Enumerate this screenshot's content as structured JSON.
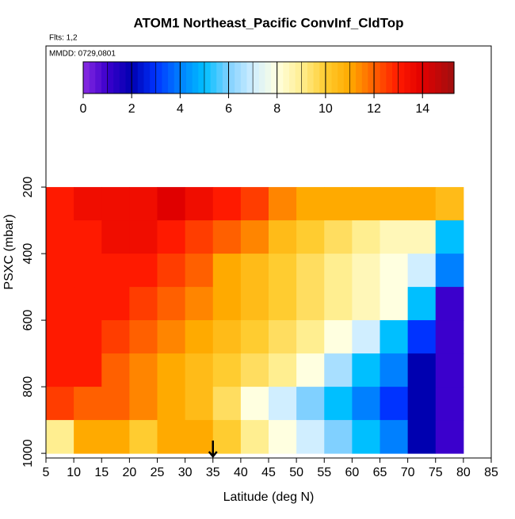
{
  "chart_data": {
    "type": "heatmap",
    "title": "ATOM1 Northeast_Pacific ConvInf_CldTop",
    "subtitle": "Flts: 1,2",
    "annotation": "MMDD: 0729,0801",
    "x_label": "Latitude (deg N)",
    "y_label": "PSXC (mbar)",
    "xlim": [
      5,
      85
    ],
    "xticks": [
      5,
      10,
      15,
      20,
      25,
      30,
      35,
      40,
      45,
      50,
      55,
      60,
      65,
      70,
      75,
      80,
      85
    ],
    "ylim": [
      1014,
      -224
    ],
    "yticks": [
      200,
      400,
      600,
      800,
      1000
    ],
    "lat_edges": [
      5,
      10,
      15,
      20,
      25,
      30,
      35,
      40,
      45,
      50,
      55,
      60,
      65,
      70,
      75,
      80
    ],
    "pres_edges": [
      200,
      300,
      400,
      500,
      600,
      700,
      800,
      900,
      1000
    ],
    "values": [
      [
        13,
        13.5,
        13.5,
        13.5,
        14,
        13.5,
        13,
        12.5,
        11.5,
        11,
        11,
        11,
        11,
        11,
        10.5
      ],
      [
        13,
        13,
        13.5,
        13.5,
        13,
        12.5,
        12,
        11.5,
        10.5,
        10,
        9.5,
        9,
        8.5,
        8.5,
        5
      ],
      [
        13,
        13,
        13,
        13,
        12.5,
        12,
        11,
        10.5,
        10,
        9.5,
        9,
        8.5,
        8,
        7,
        4
      ],
      [
        13,
        13,
        13,
        12.5,
        12,
        11.5,
        11,
        10.5,
        10,
        9.5,
        9,
        8.5,
        8,
        5,
        1
      ],
      [
        13,
        13,
        12.5,
        12,
        11.5,
        11,
        10.5,
        10,
        9.5,
        9,
        8,
        7,
        5,
        3,
        1
      ],
      [
        13,
        13,
        12,
        11.5,
        11,
        10.5,
        10,
        9.5,
        9,
        8,
        6.5,
        5,
        4,
        2,
        1
      ],
      [
        12.5,
        12,
        12,
        11.5,
        11,
        10.5,
        9.5,
        8,
        7,
        6,
        5,
        4,
        3,
        2,
        1
      ],
      [
        9,
        11,
        11,
        10,
        11,
        11,
        10,
        9,
        8,
        7,
        6,
        5,
        4,
        2,
        1
      ]
    ],
    "marker_lat": 35,
    "colorbar": {
      "lim": [
        0,
        15.3
      ],
      "ticks": [
        0,
        2,
        4,
        6,
        8,
        10,
        12,
        14
      ],
      "stops": [
        0,
        1,
        2,
        3,
        4,
        5,
        6,
        7,
        8,
        9,
        10,
        11,
        12,
        13,
        14,
        15.3
      ],
      "colors": [
        "#8a2be2",
        "#3b00cc",
        "#0000b0",
        "#0033ff",
        "#0080ff",
        "#00bfff",
        "#80d0ff",
        "#d0eeff",
        "#ffffe0",
        "#ffee90",
        "#ffcc30",
        "#ffaa00",
        "#ff6000",
        "#ff1a00",
        "#e00000",
        "#a01010"
      ]
    }
  }
}
